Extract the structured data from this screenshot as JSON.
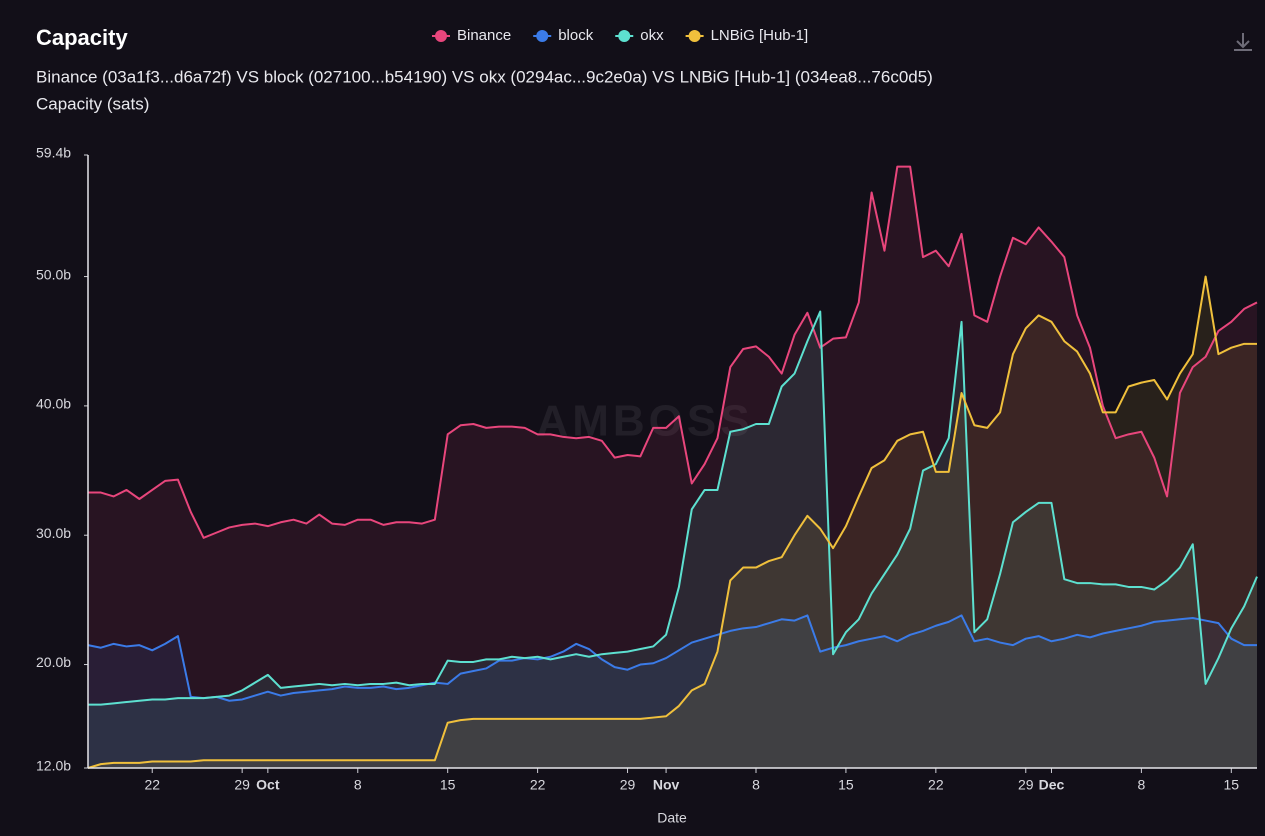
{
  "chart_data": {
    "type": "area-line",
    "title": "Capacity",
    "subtitle": "Binance (03a1f3...d6a72f) VS block (027100...b54190) VS okx (0294ac...9c2e0a) VS LNBiG [Hub-1] (034ea8...76c0d5)",
    "y_label": "Capacity (sats)",
    "x_label": "Date",
    "watermark": "AMBOSS",
    "xlim": [
      0,
      91
    ],
    "ylim": [
      12.0,
      59.4
    ],
    "yticks": [
      {
        "value": 12.0,
        "label": "12.0b"
      },
      {
        "value": 20.0,
        "label": "20.0b"
      },
      {
        "value": 30.0,
        "label": "30.0b"
      },
      {
        "value": 40.0,
        "label": "40.0b"
      },
      {
        "value": 50.0,
        "label": "50.0b"
      },
      {
        "value": 59.4,
        "label": "59.4b"
      }
    ],
    "xticks": [
      {
        "value": 5,
        "label": "22"
      },
      {
        "value": 12,
        "label": "29"
      },
      {
        "value": 14,
        "label": "Oct"
      },
      {
        "value": 21,
        "label": "8"
      },
      {
        "value": 28,
        "label": "15"
      },
      {
        "value": 35,
        "label": "22"
      },
      {
        "value": 42,
        "label": "29"
      },
      {
        "value": 45,
        "label": "Nov"
      },
      {
        "value": 52,
        "label": "8"
      },
      {
        "value": 59,
        "label": "15"
      },
      {
        "value": 66,
        "label": "22"
      },
      {
        "value": 73,
        "label": "29"
      },
      {
        "value": 75,
        "label": "Dec"
      },
      {
        "value": 82,
        "label": "8"
      },
      {
        "value": 89,
        "label": "15"
      }
    ],
    "x": [
      0,
      1,
      2,
      3,
      4,
      5,
      6,
      7,
      8,
      9,
      10,
      11,
      12,
      13,
      14,
      15,
      16,
      17,
      18,
      19,
      20,
      21,
      22,
      23,
      24,
      25,
      26,
      27,
      28,
      29,
      30,
      31,
      32,
      33,
      34,
      35,
      36,
      37,
      38,
      39,
      40,
      41,
      42,
      43,
      44,
      45,
      46,
      47,
      48,
      49,
      50,
      51,
      52,
      53,
      54,
      55,
      56,
      57,
      58,
      59,
      60,
      61,
      62,
      63,
      64,
      65,
      66,
      67,
      68,
      69,
      70,
      71,
      72,
      73,
      74,
      75,
      76,
      77,
      78,
      79,
      80,
      81,
      82,
      83,
      84,
      85,
      86,
      87,
      88,
      89,
      90,
      91
    ],
    "series": [
      {
        "name": "Binance",
        "color": "#e8467c",
        "values": [
          33.3,
          33.3,
          33.0,
          33.5,
          32.8,
          33.5,
          34.2,
          34.3,
          31.8,
          29.8,
          30.2,
          30.6,
          30.8,
          30.9,
          30.7,
          31.0,
          31.2,
          30.9,
          31.6,
          30.9,
          30.8,
          31.2,
          31.2,
          30.8,
          31.0,
          31.0,
          30.9,
          31.2,
          37.8,
          38.5,
          38.6,
          38.3,
          38.4,
          38.4,
          38.3,
          37.8,
          37.8,
          37.6,
          37.5,
          37.6,
          37.3,
          36.0,
          36.2,
          36.1,
          38.3,
          38.3,
          39.2,
          34.0,
          35.5,
          37.5,
          43.0,
          44.4,
          44.6,
          43.8,
          42.5,
          45.5,
          47.2,
          44.5,
          45.2,
          45.3,
          48.0,
          56.5,
          52.0,
          58.5,
          58.5,
          51.5,
          52.0,
          50.8,
          53.3,
          47.0,
          46.5,
          50.0,
          53.0,
          52.5,
          53.8,
          52.7,
          51.5,
          47.0,
          44.5,
          40.0,
          37.5,
          37.8,
          38.0,
          36.0,
          33.0,
          41.0,
          43.0,
          43.8,
          45.8,
          46.5,
          47.5,
          48.0
        ]
      },
      {
        "name": "block",
        "color": "#3b7be8",
        "values": [
          21.5,
          21.3,
          21.6,
          21.4,
          21.5,
          21.1,
          21.6,
          22.2,
          17.5,
          17.4,
          17.5,
          17.2,
          17.3,
          17.6,
          17.9,
          17.6,
          17.8,
          17.9,
          18.0,
          18.1,
          18.3,
          18.2,
          18.2,
          18.3,
          18.1,
          18.2,
          18.4,
          18.6,
          18.5,
          19.3,
          19.5,
          19.7,
          20.3,
          20.3,
          20.5,
          20.4,
          20.6,
          21.0,
          21.6,
          21.2,
          20.4,
          19.8,
          19.6,
          20.0,
          20.1,
          20.5,
          21.1,
          21.7,
          22.0,
          22.3,
          22.6,
          22.8,
          22.9,
          23.2,
          23.5,
          23.4,
          23.8,
          21.0,
          21.3,
          21.5,
          21.8,
          22.0,
          22.2,
          21.8,
          22.3,
          22.6,
          23.0,
          23.3,
          23.8,
          21.8,
          22.0,
          21.7,
          21.5,
          22.0,
          22.2,
          21.8,
          22.0,
          22.3,
          22.1,
          22.4,
          22.6,
          22.8,
          23.0,
          23.3,
          23.4,
          23.5,
          23.6,
          23.4,
          23.2,
          22.0,
          21.5,
          21.5
        ]
      },
      {
        "name": "okx",
        "color": "#5de0d0",
        "values": [
          16.9,
          16.9,
          17.0,
          17.1,
          17.2,
          17.3,
          17.3,
          17.4,
          17.4,
          17.4,
          17.5,
          17.6,
          18.0,
          18.6,
          19.2,
          18.2,
          18.3,
          18.4,
          18.5,
          18.4,
          18.5,
          18.4,
          18.5,
          18.5,
          18.6,
          18.4,
          18.5,
          18.5,
          20.3,
          20.2,
          20.2,
          20.4,
          20.4,
          20.6,
          20.5,
          20.6,
          20.4,
          20.6,
          20.8,
          20.6,
          20.8,
          20.9,
          21.0,
          21.2,
          21.4,
          22.3,
          26.0,
          32.0,
          33.5,
          33.5,
          38.0,
          38.2,
          38.6,
          38.6,
          41.5,
          42.5,
          45.0,
          47.3,
          20.8,
          22.5,
          23.5,
          25.5,
          27.0,
          28.5,
          30.5,
          35.0,
          35.5,
          37.5,
          46.5,
          22.5,
          23.5,
          27.0,
          31.0,
          31.8,
          32.5,
          32.5,
          26.6,
          26.3,
          26.3,
          26.2,
          26.2,
          26.0,
          26.0,
          25.8,
          26.5,
          27.5,
          29.3,
          18.5,
          20.5,
          22.8,
          24.5,
          26.8
        ]
      },
      {
        "name": "LNBiG [Hub-1]",
        "color": "#f0c03c",
        "values": [
          12.0,
          12.3,
          12.4,
          12.4,
          12.4,
          12.5,
          12.5,
          12.5,
          12.5,
          12.6,
          12.6,
          12.6,
          12.6,
          12.6,
          12.6,
          12.6,
          12.6,
          12.6,
          12.6,
          12.6,
          12.6,
          12.6,
          12.6,
          12.6,
          12.6,
          12.6,
          12.6,
          12.6,
          15.5,
          15.7,
          15.8,
          15.8,
          15.8,
          15.8,
          15.8,
          15.8,
          15.8,
          15.8,
          15.8,
          15.8,
          15.8,
          15.8,
          15.8,
          15.8,
          15.9,
          16.0,
          16.8,
          18.0,
          18.5,
          21.0,
          26.5,
          27.5,
          27.5,
          28.0,
          28.3,
          30.0,
          31.5,
          30.5,
          29.0,
          30.7,
          33.0,
          35.2,
          35.8,
          37.3,
          37.8,
          38.0,
          34.9,
          34.9,
          41.0,
          38.5,
          38.3,
          39.5,
          44.0,
          46.0,
          47.0,
          46.5,
          45.0,
          44.2,
          42.5,
          39.5,
          39.5,
          41.5,
          41.8,
          42.0,
          40.5,
          42.5,
          44.0,
          50.0,
          44.0,
          44.5,
          44.8,
          44.8
        ]
      }
    ]
  }
}
